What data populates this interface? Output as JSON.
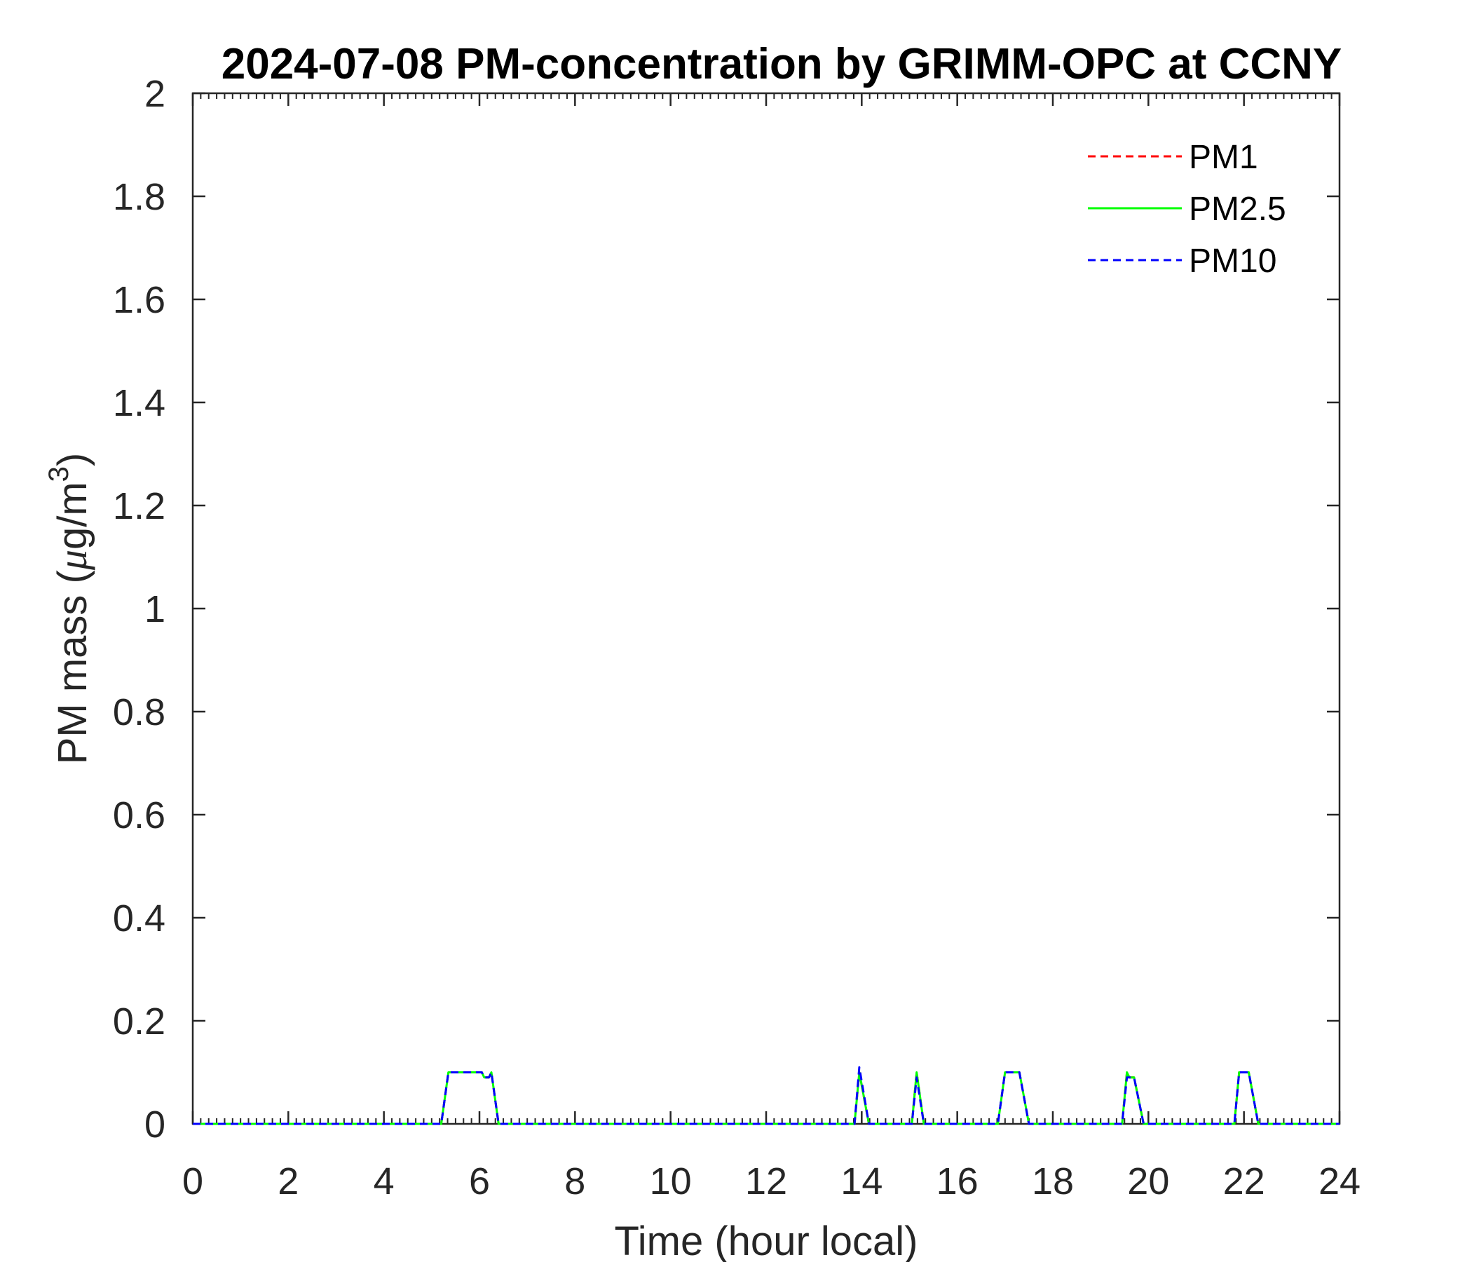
{
  "chart_data": {
    "type": "line",
    "title": "2024-07-08 PM-concentration by GRIMM-OPC at CCNY",
    "xlabel": "Time (hour local)",
    "ylabel": "PM mass (μg/m³)",
    "ylabel_parts": {
      "prefix": "PM mass (",
      "mu": "μ",
      "unit": "g/m",
      "sup": "3",
      "suffix": ")"
    },
    "xlim": [
      0,
      24
    ],
    "ylim": [
      0,
      2
    ],
    "xticks": [
      "0",
      "2",
      "4",
      "6",
      "8",
      "10",
      "12",
      "14",
      "16",
      "18",
      "20",
      "22",
      "24"
    ],
    "yticks": [
      "0",
      "0.2",
      "0.4",
      "0.6",
      "0.8",
      "1",
      "1.2",
      "1.4",
      "1.6",
      "1.8",
      "2"
    ],
    "grid": false,
    "legend_position": "top-right",
    "series": [
      {
        "name": "PM1",
        "color": "#ff0000",
        "style": "dashed",
        "x": [
          0,
          5.2,
          5.35,
          6.05,
          6.1,
          6.2,
          6.25,
          6.4,
          13.85,
          13.95,
          14.15,
          15.05,
          15.15,
          15.3,
          16.85,
          17.0,
          17.3,
          17.5,
          19.45,
          19.55,
          19.6,
          19.7,
          19.9,
          21.8,
          21.9,
          22.1,
          22.3,
          24
        ],
        "y": [
          0,
          0,
          0.1,
          0.1,
          0.09,
          0.09,
          0.1,
          0,
          0,
          0.1,
          0,
          0,
          0.1,
          0,
          0,
          0.1,
          0.1,
          0,
          0,
          0.1,
          0.09,
          0.09,
          0,
          0,
          0.1,
          0.1,
          0,
          0
        ]
      },
      {
        "name": "PM2.5",
        "color": "#00ff00",
        "style": "solid",
        "x": [
          0,
          5.2,
          5.35,
          6.05,
          6.1,
          6.2,
          6.25,
          6.4,
          13.85,
          13.95,
          14.15,
          15.05,
          15.15,
          15.3,
          16.85,
          17.0,
          17.3,
          17.5,
          19.45,
          19.55,
          19.6,
          19.7,
          19.9,
          21.8,
          21.9,
          22.1,
          22.3,
          24
        ],
        "y": [
          0,
          0,
          0.1,
          0.1,
          0.09,
          0.09,
          0.1,
          0,
          0,
          0.1,
          0,
          0,
          0.1,
          0,
          0,
          0.1,
          0.1,
          0,
          0,
          0.1,
          0.09,
          0.09,
          0,
          0,
          0.1,
          0.1,
          0,
          0
        ]
      },
      {
        "name": "PM10",
        "color": "#0000ff",
        "style": "dashed",
        "x": [
          0,
          5.2,
          5.35,
          6.05,
          6.1,
          6.2,
          6.25,
          6.4,
          13.85,
          13.95,
          14.15,
          15.05,
          15.15,
          15.3,
          16.85,
          17.0,
          17.3,
          17.5,
          19.45,
          19.55,
          19.6,
          19.7,
          19.9,
          21.8,
          21.9,
          22.1,
          22.3,
          24
        ],
        "y": [
          0,
          0,
          0.1,
          0.1,
          0.09,
          0.09,
          0.1,
          0,
          0,
          0.11,
          0,
          0,
          0.09,
          0,
          0,
          0.1,
          0.1,
          0,
          0,
          0.09,
          0.09,
          0.09,
          0,
          0,
          0.1,
          0.1,
          0,
          0
        ]
      }
    ]
  }
}
